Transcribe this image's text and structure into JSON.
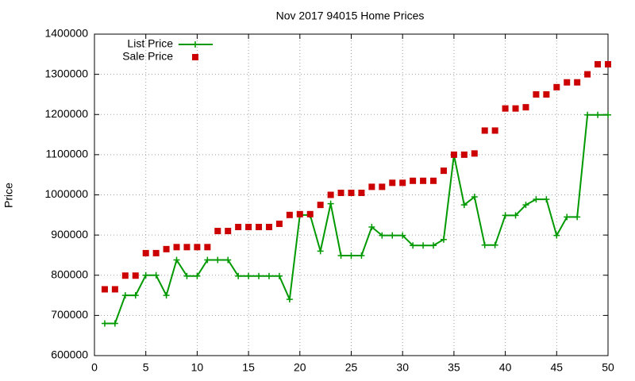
{
  "chart_data": {
    "type": "line",
    "title": "Nov 2017 94015 Home Prices",
    "y_label": "Price",
    "x": [
      1,
      2,
      3,
      4,
      5,
      6,
      7,
      8,
      9,
      10,
      11,
      12,
      13,
      14,
      15,
      16,
      17,
      18,
      19,
      20,
      21,
      22,
      23,
      24,
      25,
      26,
      27,
      28,
      29,
      30,
      31,
      32,
      33,
      34,
      35,
      36,
      37,
      38,
      39,
      40,
      41,
      42,
      43,
      44,
      45,
      46,
      47,
      48,
      49,
      50
    ],
    "series": [
      {
        "name": "List Price",
        "color": "#009900",
        "style": "linespoints",
        "values": [
          680000,
          680000,
          750000,
          750000,
          800000,
          800000,
          750000,
          838000,
          798000,
          798000,
          838000,
          838000,
          838000,
          798000,
          798000,
          798000,
          798000,
          798000,
          740000,
          950000,
          950000,
          860000,
          978000,
          849000,
          849000,
          849000,
          920000,
          899000,
          899000,
          899000,
          874000,
          874000,
          874000,
          889000,
          1099000,
          975000,
          995000,
          875000,
          875000,
          949000,
          949000,
          975000,
          989000,
          989000,
          899000,
          945000,
          945000,
          1199000,
          1199000,
          1199000
        ]
      },
      {
        "name": "Sale Price",
        "color": "#cc0000",
        "style": "points",
        "values": [
          765000,
          765000,
          799000,
          799000,
          855000,
          855000,
          865000,
          870000,
          870000,
          870000,
          870000,
          910000,
          910000,
          920000,
          920000,
          920000,
          920000,
          928000,
          950000,
          952000,
          952000,
          975000,
          1000000,
          1005000,
          1005000,
          1005000,
          1020000,
          1020000,
          1030000,
          1030000,
          1035000,
          1035000,
          1035000,
          1060000,
          1100000,
          1100000,
          1103000,
          1160000,
          1160000,
          1215000,
          1215000,
          1218000,
          1250000,
          1250000,
          1268000,
          1280000,
          1280000,
          1300000,
          1325000,
          1325000
        ]
      }
    ],
    "xlim": [
      0,
      50
    ],
    "xticks": [
      0,
      5,
      10,
      15,
      20,
      25,
      30,
      35,
      40,
      45,
      50
    ],
    "ylim": [
      600000,
      1400000
    ],
    "yticks": [
      600000,
      700000,
      800000,
      900000,
      1000000,
      1100000,
      1200000,
      1300000,
      1400000
    ],
    "grid": true,
    "legend_position": "top-left"
  }
}
